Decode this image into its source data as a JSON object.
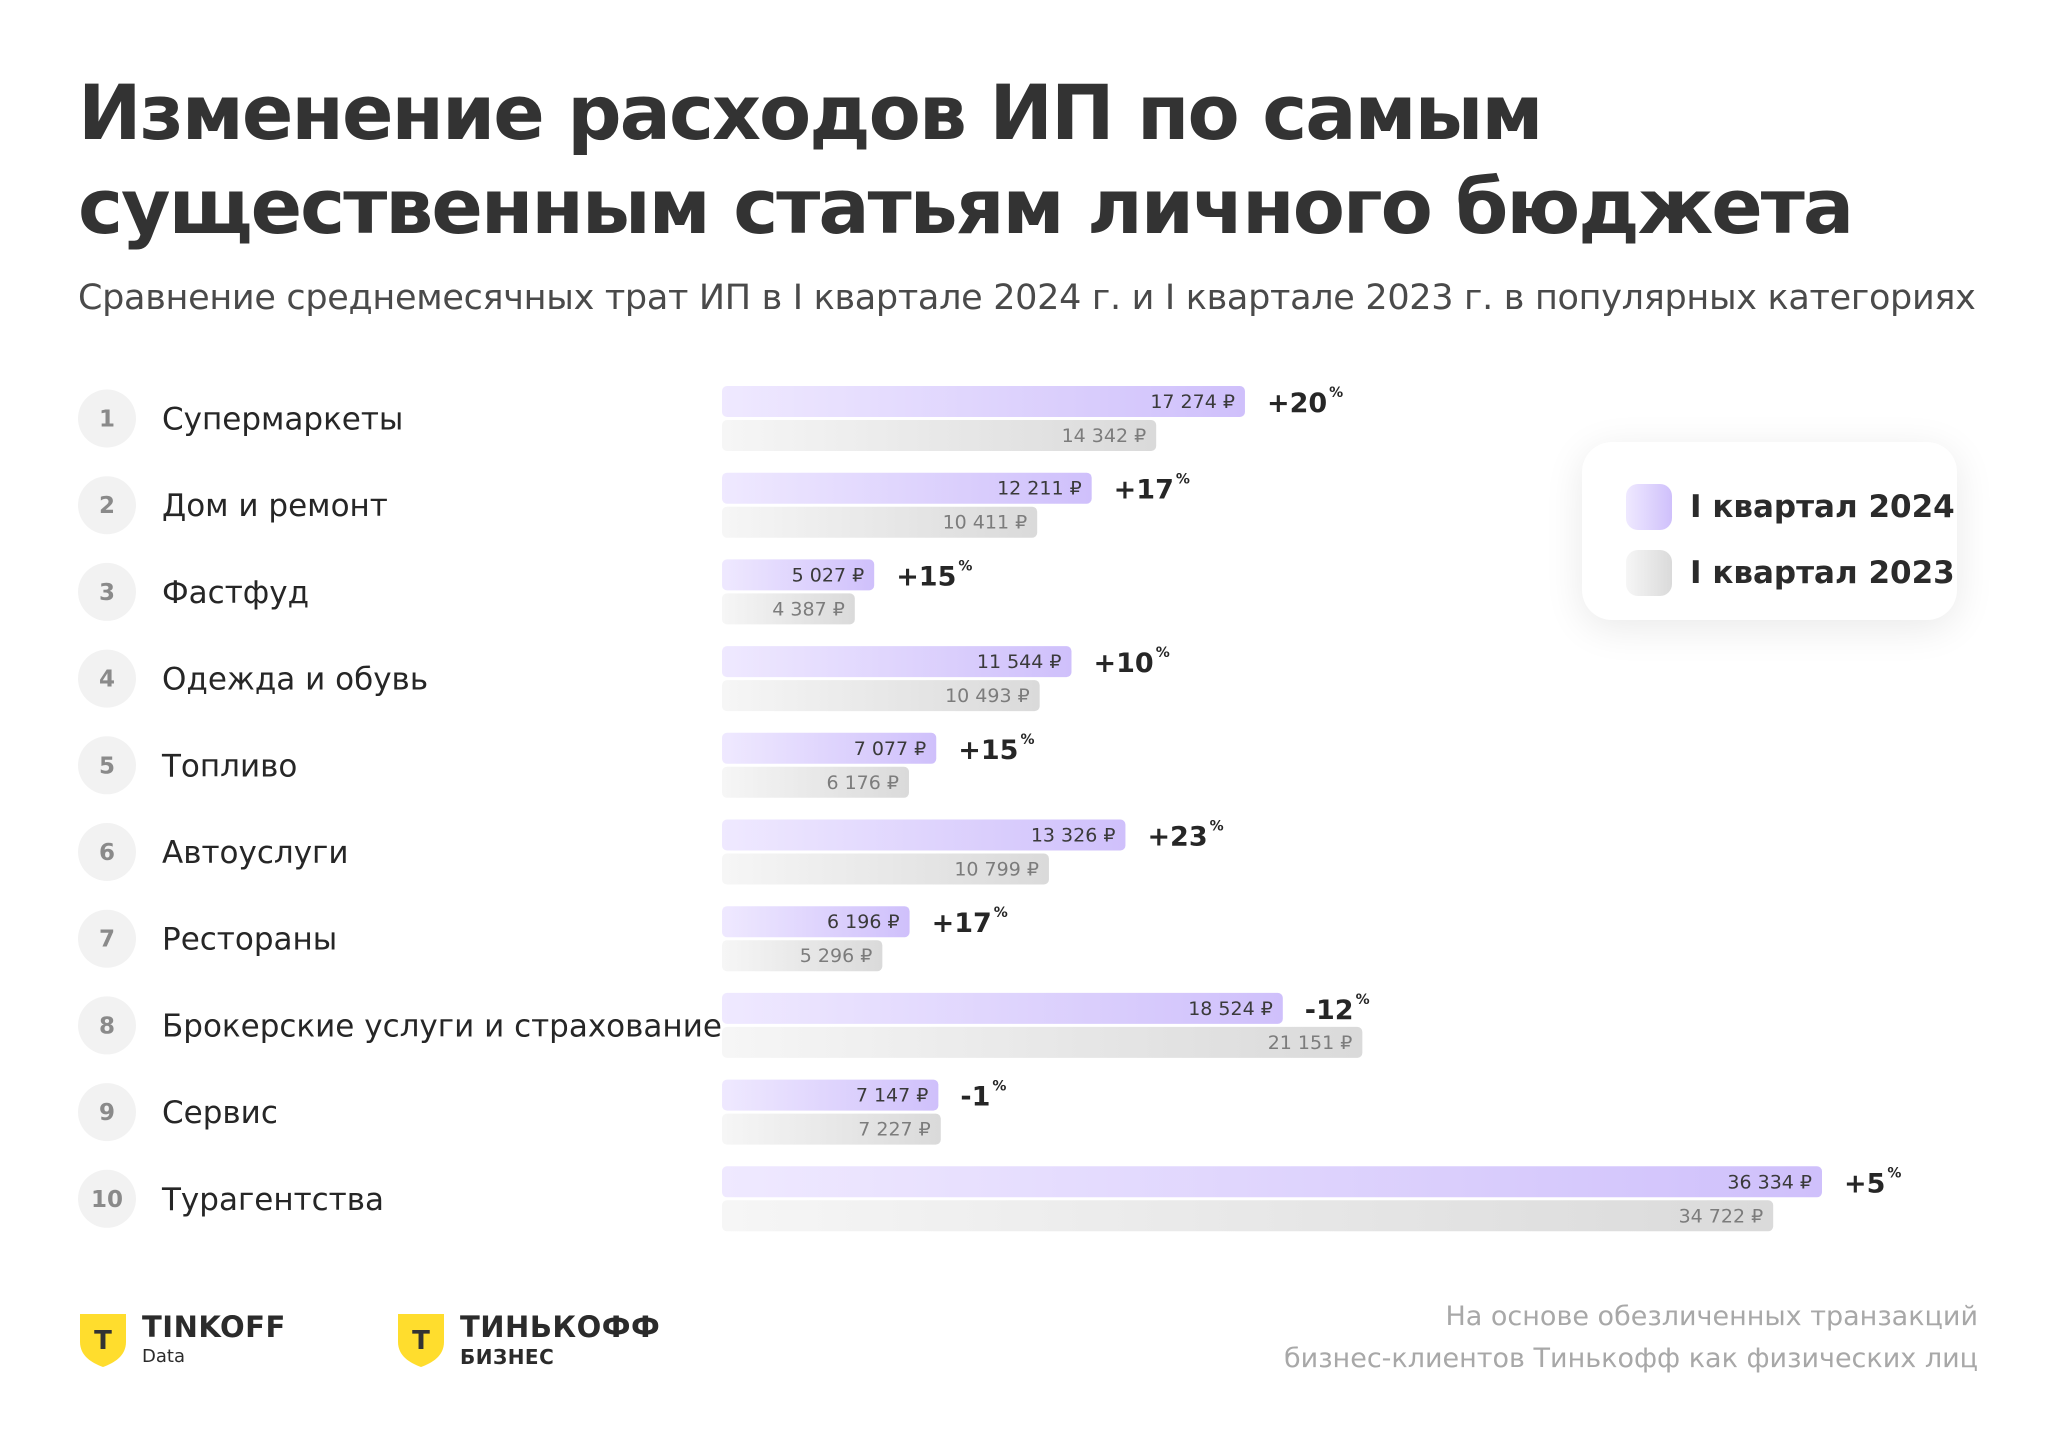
{
  "header": {
    "title": "Изменение расходов ИП по самым существенным статьям личного бюджета",
    "subtitle": "Сравнение среднемесячных трат ИП в I квартале 2024 г. и I квартале 2023 г. в популярных категориях"
  },
  "legend": {
    "item_2024": "I квартал 2024",
    "item_2023": "I квартал 2023"
  },
  "colors": {
    "bar_2024_start": "#efe9ff",
    "bar_2024_end": "#cfc0fb",
    "bar_2023_start": "#f6f6f6",
    "bar_2023_end": "#dadada",
    "logo_yellow": "#ffdd2d"
  },
  "chart_data": {
    "type": "bar",
    "orientation": "horizontal",
    "categories": [
      "Супермаркеты",
      "Дом и ремонт",
      "Фастфуд",
      "Одежда и обувь",
      "Топливо",
      "Автоуслуги",
      "Рестораны",
      "Брокерские услуги и страхование",
      "Сервис",
      "Турагентства"
    ],
    "ranks": [
      "1",
      "2",
      "3",
      "4",
      "5",
      "6",
      "7",
      "8",
      "9",
      "10"
    ],
    "series": [
      {
        "name": "I квартал 2024",
        "values": [
          17274,
          12211,
          5027,
          11544,
          7077,
          13326,
          6196,
          18524,
          7147,
          36334
        ],
        "labels": [
          "17 274 ₽",
          "12 211 ₽",
          "5 027 ₽",
          "11 544 ₽",
          "7 077 ₽",
          "13 326 ₽",
          "6 196 ₽",
          "18 524 ₽",
          "7 147 ₽",
          "36 334 ₽"
        ]
      },
      {
        "name": "I квартал 2023",
        "values": [
          14342,
          10411,
          4387,
          10493,
          6176,
          10799,
          5296,
          21151,
          7227,
          34722
        ],
        "labels": [
          "14 342 ₽",
          "10 411 ₽",
          "4 387 ₽",
          "10 493 ₽",
          "6 176 ₽",
          "10 799 ₽",
          "5 296 ₽",
          "21 151 ₽",
          "7 227 ₽",
          "34 722 ₽"
        ]
      }
    ],
    "change_labels": [
      "+20",
      "+17",
      "+15",
      "+10",
      "+15",
      "+23",
      "+17",
      "-12",
      "-1",
      "+5"
    ],
    "change_unit": "%",
    "xlim": [
      0,
      36334
    ],
    "grid": false,
    "legend_position": "top-right"
  },
  "logos": {
    "left_name": "TINKOFF",
    "left_sub": "Data",
    "right_name": "ТИНЬКОФФ",
    "right_sub": "БИЗНЕС",
    "shield_letter": "Т"
  },
  "footnote": {
    "line1": "На основе обезличенных транзакций",
    "line2": "бизнес-клиентов Тинькофф как физических лиц"
  }
}
